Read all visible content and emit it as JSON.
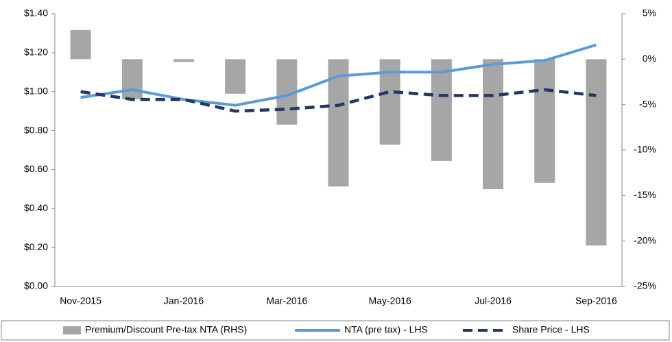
{
  "chart_data": {
    "type": "combo",
    "categories": [
      "Nov-2015",
      null,
      "Jan-2016",
      null,
      "Mar-2016",
      null,
      "May-2016",
      null,
      "Jul-2016",
      null,
      "Sep-2016"
    ],
    "series": [
      {
        "name": "Premium/Discount Pre-tax NTA (RHS)",
        "type": "bar",
        "axis": "y2",
        "color": "#a6a6a6",
        "values": [
          3.2,
          -4.4,
          -0.3,
          -3.8,
          -7.2,
          -14.0,
          -9.4,
          -11.2,
          -14.3,
          -13.6,
          -20.5
        ]
      },
      {
        "name": "NTA (pre tax) - LHS",
        "type": "line",
        "color": "#5b9bd5",
        "dash": false,
        "values": [
          0.97,
          1.01,
          0.96,
          0.93,
          0.98,
          1.08,
          1.1,
          1.1,
          1.14,
          1.16,
          1.24
        ]
      },
      {
        "name": "Share Price - LHS",
        "type": "line",
        "color": "#1f3864",
        "dash": true,
        "values": [
          1.0,
          0.96,
          0.96,
          0.9,
          0.91,
          0.93,
          1.0,
          0.98,
          0.98,
          1.01,
          0.98
        ]
      }
    ],
    "ylim": [
      0,
      1.4
    ],
    "yticks": [
      {
        "value": 0,
        "label": "$0.00"
      },
      {
        "value": 0.2,
        "label": "$0.20"
      },
      {
        "value": 0.4,
        "label": "$0.40"
      },
      {
        "value": 0.6,
        "label": "$0.60"
      },
      {
        "value": 0.8,
        "label": "$0.80"
      },
      {
        "value": 1.0,
        "label": "$1.00"
      },
      {
        "value": 1.2,
        "label": "$1.20"
      },
      {
        "value": 1.4,
        "label": "$1.40"
      }
    ],
    "y2lim": [
      -25,
      5
    ],
    "y2ticks": [
      {
        "value": -25,
        "label": "-25%"
      },
      {
        "value": -20,
        "label": "-20%"
      },
      {
        "value": -15,
        "label": "-15%"
      },
      {
        "value": -10,
        "label": "-10%"
      },
      {
        "value": -5,
        "label": "-5%"
      },
      {
        "value": 0,
        "label": "0%"
      },
      {
        "value": 5,
        "label": "5%"
      }
    ],
    "legend": "bottom"
  }
}
